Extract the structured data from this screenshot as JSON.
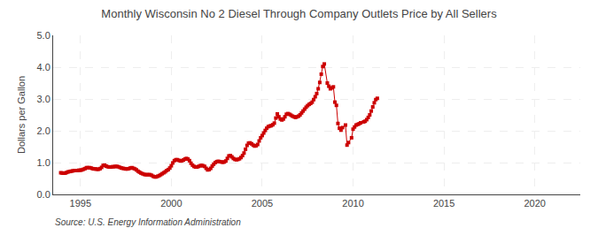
{
  "chart_data": {
    "type": "line",
    "title": "Monthly Wisconsin No 2 Diesel Through Company Outlets Price by All Sellers",
    "ylabel": "Dollars per Gallon",
    "source": "Source: U.S. Energy Information Administration",
    "color": "#cc0000",
    "marker": "square",
    "line_style": "solid",
    "grid": true,
    "xlim": [
      1993.5,
      2022.5
    ],
    "ylim": [
      0.0,
      5.0
    ],
    "xticks": [
      1995,
      2000,
      2005,
      2010,
      2015,
      2020
    ],
    "yticks": [
      {
        "value": 0.0,
        "label": "0.0"
      },
      {
        "value": 1.0,
        "label": "1.0"
      },
      {
        "value": 2.0,
        "label": "2.0"
      },
      {
        "value": 3.0,
        "label": "3.0"
      },
      {
        "value": 4.0,
        "label": "4.0"
      },
      {
        "value": 5.0,
        "label": "5.0"
      }
    ],
    "x": [
      1993.917,
      1994.0,
      1994.083,
      1994.167,
      1994.25,
      1994.333,
      1994.417,
      1994.5,
      1994.583,
      1994.667,
      1994.75,
      1994.833,
      1994.917,
      1995.0,
      1995.083,
      1995.167,
      1995.25,
      1995.333,
      1995.417,
      1995.5,
      1995.583,
      1995.667,
      1995.75,
      1995.833,
      1995.917,
      1996.0,
      1996.083,
      1996.167,
      1996.25,
      1996.333,
      1996.417,
      1996.5,
      1996.583,
      1996.667,
      1996.75,
      1996.833,
      1996.917,
      1997.0,
      1997.083,
      1997.167,
      1997.25,
      1997.333,
      1997.417,
      1997.5,
      1997.583,
      1997.667,
      1997.75,
      1997.833,
      1997.917,
      1998.0,
      1998.083,
      1998.167,
      1998.25,
      1998.333,
      1998.417,
      1998.5,
      1998.583,
      1998.667,
      1998.75,
      1998.833,
      1998.917,
      1999.0,
      1999.083,
      1999.167,
      1999.25,
      1999.333,
      1999.417,
      1999.5,
      1999.583,
      1999.667,
      1999.75,
      1999.833,
      1999.917,
      2000.0,
      2000.083,
      2000.167,
      2000.25,
      2000.333,
      2000.417,
      2000.5,
      2000.583,
      2000.667,
      2000.75,
      2000.833,
      2000.917,
      2001.0,
      2001.083,
      2001.167,
      2001.25,
      2001.333,
      2001.417,
      2001.5,
      2001.583,
      2001.667,
      2001.75,
      2001.833,
      2001.917,
      2002.0,
      2002.083,
      2002.167,
      2002.25,
      2002.333,
      2002.417,
      2002.5,
      2002.583,
      2002.667,
      2002.75,
      2002.833,
      2002.917,
      2003.0,
      2003.083,
      2003.167,
      2003.25,
      2003.333,
      2003.417,
      2003.5,
      2003.583,
      2003.667,
      2003.75,
      2003.833,
      2003.917,
      2004.0,
      2004.083,
      2004.167,
      2004.25,
      2004.333,
      2004.417,
      2004.5,
      2004.583,
      2004.667,
      2004.75,
      2004.833,
      2004.917,
      2005.0,
      2005.083,
      2005.167,
      2005.25,
      2005.333,
      2005.417,
      2005.5,
      2005.583,
      2005.667,
      2005.75,
      2005.833,
      2005.917,
      2006.0,
      2006.083,
      2006.167,
      2006.25,
      2006.333,
      2006.417,
      2006.5,
      2006.583,
      2006.667,
      2006.75,
      2006.833,
      2006.917,
      2007.0,
      2007.083,
      2007.167,
      2007.25,
      2007.333,
      2007.417,
      2007.5,
      2007.583,
      2007.667,
      2007.75,
      2007.833,
      2007.917,
      2008.0,
      2008.083,
      2008.167,
      2008.25,
      2008.333,
      2008.417,
      2008.583,
      2008.667,
      2008.75,
      2008.833,
      2008.917,
      2009.0,
      2009.083,
      2009.167,
      2009.25,
      2009.333,
      2009.417,
      2009.583,
      2009.667,
      2009.75,
      2009.917,
      2010.0,
      2010.083,
      2010.167,
      2010.25,
      2010.333,
      2010.417,
      2010.583,
      2010.667,
      2010.75,
      2010.833,
      2010.917,
      2011.0,
      2011.083,
      2011.167,
      2011.25,
      2011.333
    ],
    "values": [
      0.68,
      0.67,
      0.67,
      0.67,
      0.69,
      0.71,
      0.72,
      0.73,
      0.74,
      0.75,
      0.75,
      0.75,
      0.76,
      0.76,
      0.77,
      0.79,
      0.81,
      0.84,
      0.84,
      0.84,
      0.83,
      0.81,
      0.8,
      0.8,
      0.79,
      0.79,
      0.81,
      0.85,
      0.91,
      0.92,
      0.89,
      0.87,
      0.86,
      0.86,
      0.87,
      0.87,
      0.88,
      0.88,
      0.87,
      0.85,
      0.83,
      0.82,
      0.81,
      0.8,
      0.8,
      0.81,
      0.83,
      0.84,
      0.82,
      0.8,
      0.77,
      0.73,
      0.7,
      0.67,
      0.65,
      0.63,
      0.62,
      0.62,
      0.62,
      0.62,
      0.6,
      0.57,
      0.55,
      0.55,
      0.57,
      0.59,
      0.62,
      0.65,
      0.68,
      0.71,
      0.75,
      0.78,
      0.83,
      0.9,
      0.99,
      1.06,
      1.09,
      1.09,
      1.07,
      1.05,
      1.06,
      1.08,
      1.11,
      1.13,
      1.11,
      1.06,
      0.98,
      0.92,
      0.88,
      0.86,
      0.86,
      0.88,
      0.9,
      0.91,
      0.9,
      0.88,
      0.82,
      0.77,
      0.78,
      0.82,
      0.89,
      0.95,
      1.0,
      1.03,
      1.04,
      1.03,
      1.02,
      1.01,
      1.02,
      1.05,
      1.13,
      1.21,
      1.22,
      1.18,
      1.13,
      1.1,
      1.09,
      1.1,
      1.12,
      1.16,
      1.22,
      1.3,
      1.42,
      1.54,
      1.61,
      1.62,
      1.59,
      1.55,
      1.52,
      1.53,
      1.57,
      1.68,
      1.78,
      1.85,
      1.93,
      2.01,
      2.08,
      2.13,
      2.15,
      2.16,
      2.19,
      2.24,
      2.4,
      2.53,
      2.44,
      2.37,
      2.34,
      2.37,
      2.44,
      2.52,
      2.54,
      2.52,
      2.49,
      2.46,
      2.44,
      2.42,
      2.44,
      2.46,
      2.5,
      2.56,
      2.62,
      2.68,
      2.74,
      2.79,
      2.83,
      2.86,
      2.9,
      2.98,
      3.07,
      3.17,
      3.32,
      3.52,
      3.78,
      4.02,
      4.1,
      3.5,
      3.4,
      3.32,
      3.35,
      3.38,
      2.9,
      2.8,
      2.23,
      2.08,
      2.02,
      2.1,
      2.18,
      1.55,
      1.63,
      1.78,
      2.05,
      2.12,
      2.18,
      2.2,
      2.22,
      2.25,
      2.28,
      2.3,
      2.35,
      2.42,
      2.5,
      2.62,
      2.75,
      2.88,
      2.98,
      3.02
    ]
  }
}
